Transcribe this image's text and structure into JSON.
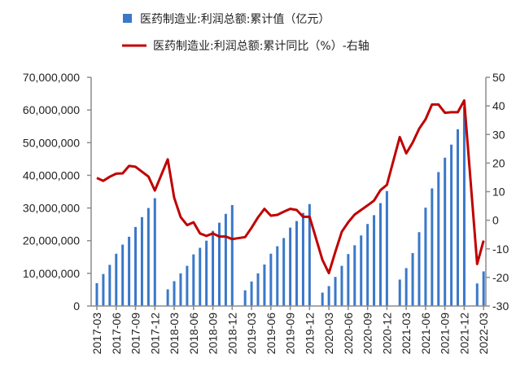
{
  "chart_data": {
    "type": "bar+line",
    "title": "",
    "legend": {
      "placement": "top"
    },
    "grid": false,
    "categories": [
      "2017-03",
      "2017-04",
      "2017-05",
      "2017-06",
      "2017-07",
      "2017-08",
      "2017-09",
      "2017-10",
      "2017-11",
      "2017-12",
      "2018-01",
      "2018-02",
      "2018-03",
      "2018-04",
      "2018-05",
      "2018-06",
      "2018-07",
      "2018-08",
      "2018-09",
      "2018-10",
      "2018-11",
      "2018-12",
      "2019-01",
      "2019-02",
      "2019-03",
      "2019-04",
      "2019-05",
      "2019-06",
      "2019-07",
      "2019-08",
      "2019-09",
      "2019-10",
      "2019-11",
      "2019-12",
      "2020-01",
      "2020-02",
      "2020-03",
      "2020-04",
      "2020-05",
      "2020-06",
      "2020-07",
      "2020-08",
      "2020-09",
      "2020-10",
      "2020-11",
      "2020-12",
      "2021-01",
      "2021-02",
      "2021-03",
      "2021-04",
      "2021-05",
      "2021-06",
      "2021-07",
      "2021-08",
      "2021-09",
      "2021-10",
      "2021-11",
      "2021-12",
      "2022-01",
      "2022-02",
      "2022-03"
    ],
    "x_tick_labels": [
      "2017-03",
      "2017-06",
      "2017-09",
      "2017-12",
      "2018-03",
      "2018-06",
      "2018-09",
      "2018-12",
      "2019-03",
      "2019-06",
      "2019-09",
      "2019-12",
      "2020-03",
      "2020-06",
      "2020-09",
      "2020-12",
      "2021-03",
      "2021-06",
      "2021-09",
      "2021-12",
      "2022-03"
    ],
    "y_left": {
      "range": [
        0,
        70000000
      ],
      "ticks": [
        "0",
        "10,000,000",
        "20,000,000",
        "30,000,000",
        "40,000,000",
        "50,000,000",
        "60,000,000",
        "70,000,000"
      ]
    },
    "y_right": {
      "range": [
        -30,
        50
      ],
      "ticks": [
        "-30",
        "-20",
        "-10",
        "0",
        "10",
        "20",
        "30",
        "40",
        "50"
      ]
    },
    "series": [
      {
        "name": "医药制造业:利润总额:累计值（亿元）",
        "type": "bar",
        "axis": "left",
        "color": "#3a78c9",
        "values": [
          7000000,
          9800000,
          12600000,
          16000000,
          18800000,
          21200000,
          24200000,
          27200000,
          30000000,
          33000000,
          null,
          5100000,
          7600000,
          10000000,
          12300000,
          15800000,
          17800000,
          20000000,
          23000000,
          25500000,
          28200000,
          30900000,
          null,
          4800000,
          7500000,
          10000000,
          12700000,
          16000000,
          18300000,
          20800000,
          24000000,
          26000000,
          28500000,
          31200000,
          null,
          4100000,
          6100000,
          8900000,
          12300000,
          15900000,
          18600000,
          21600000,
          25100000,
          27800000,
          31500000,
          35200000,
          null,
          8100000,
          11600000,
          16200000,
          22600000,
          30100000,
          36000000,
          41000000,
          45400000,
          49400000,
          54100000,
          61000000,
          null,
          6900000,
          10600000
        ]
      },
      {
        "name": "医药制造业:利润总额:累计同比（%）-右轴",
        "type": "line",
        "axis": "right",
        "color": "#c00000",
        "values": [
          14.8,
          13.8,
          15.2,
          16.3,
          16.4,
          19.0,
          18.7,
          17.0,
          15.3,
          10.4,
          null,
          21.3,
          7.9,
          1.1,
          -1.7,
          -0.7,
          -4.6,
          -5.5,
          -4.6,
          -5.7,
          -5.7,
          -6.6,
          null,
          -5.9,
          -2.6,
          1.0,
          4.0,
          1.6,
          1.9,
          3.0,
          4.0,
          3.6,
          1.2,
          1.2,
          null,
          -13.9,
          -18.5,
          -11.1,
          -4.0,
          -0.7,
          2.0,
          3.6,
          5.2,
          6.9,
          10.5,
          12.4,
          null,
          29.1,
          23.4,
          27.2,
          32.0,
          35.3,
          40.5,
          40.5,
          37.6,
          37.8,
          37.8,
          41.9,
          null,
          -15.3,
          -7.1
        ]
      }
    ]
  }
}
